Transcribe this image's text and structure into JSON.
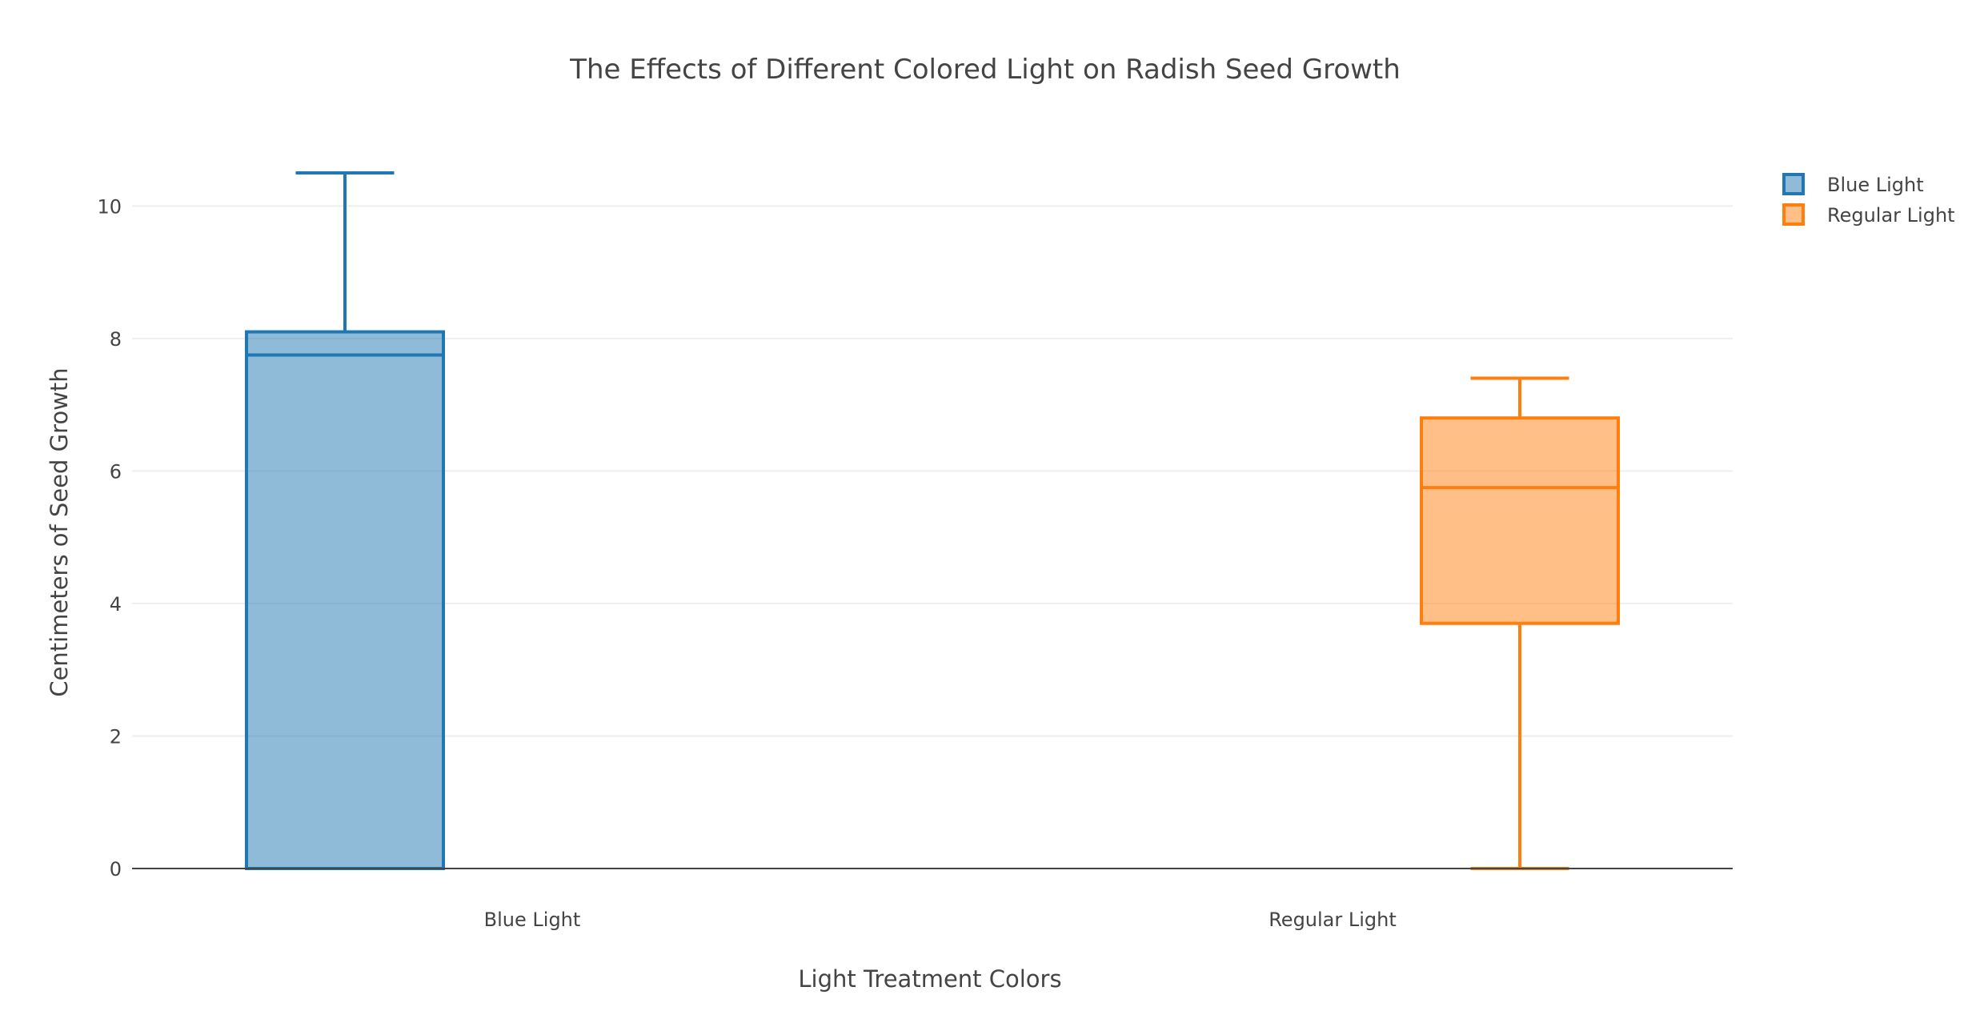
{
  "chart_data": {
    "type": "box",
    "title": "The Effects of Different Colored Light on Radish Seed Growth",
    "xlabel": "Light Treatment Colors",
    "ylabel": "Centimeters of Seed Growth",
    "ylim": [
      0,
      11.2
    ],
    "yticks": [
      0,
      2,
      4,
      6,
      8,
      10
    ],
    "grid": true,
    "legend_position": "top-right",
    "categories": [
      "Blue Light",
      "Regular Light"
    ],
    "series": [
      {
        "name": "Blue Light",
        "category": "Blue Light",
        "color": "#1f77b4",
        "fill": "rgba(31,119,180,0.5)",
        "box_offset": "left",
        "min": 0,
        "q1": 0,
        "median": 7.75,
        "q3": 8.1,
        "max": 10.5
      },
      {
        "name": "Regular Light",
        "category": "Regular Light",
        "color": "#ff7f0e",
        "fill": "rgba(255,127,14,0.5)",
        "box_offset": "right",
        "min": 0,
        "q1": 3.7,
        "median": 5.75,
        "q3": 6.8,
        "max": 7.4
      }
    ]
  }
}
